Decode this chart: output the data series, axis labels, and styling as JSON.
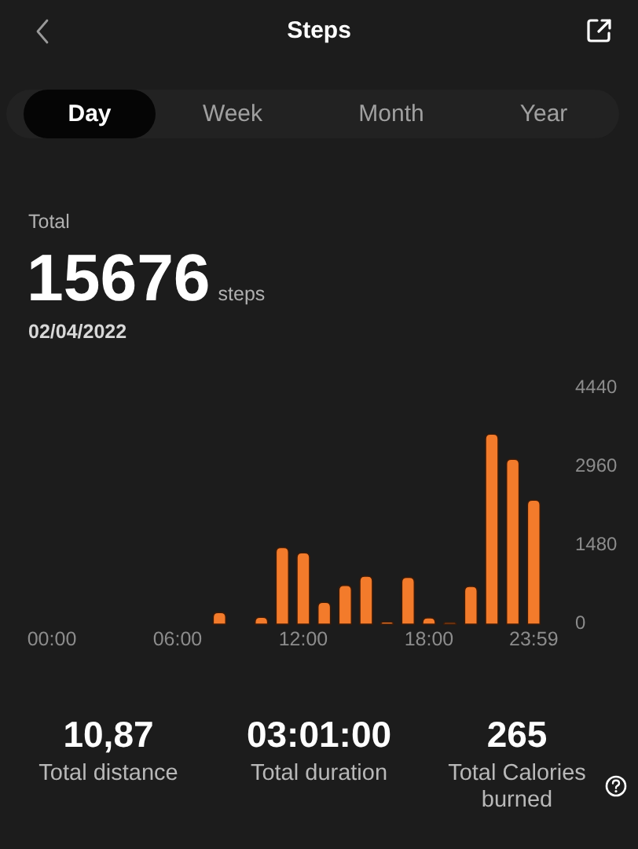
{
  "chart_data": {
    "type": "bar",
    "title": "Steps",
    "annotations": [
      "Day",
      "Week",
      "Month",
      "Year",
      "Total",
      "15676",
      "steps",
      "02/04/2022",
      "10,87",
      "Total distance",
      "03:01:00",
      "Total duration",
      "265",
      "Total Calories burned"
    ],
    "categories": [
      "00:00",
      null,
      null,
      null,
      null,
      null,
      "06:00",
      null,
      null,
      null,
      null,
      null,
      "12:00",
      null,
      null,
      null,
      null,
      null,
      "18:00",
      null,
      null,
      null,
      null,
      "23:59"
    ],
    "values": [
      null,
      null,
      null,
      null,
      null,
      null,
      null,
      null,
      220,
      null,
      130,
      1440,
      1340,
      410,
      730,
      900,
      40,
      880,
      120,
      30,
      710,
      3570,
      3100,
      2330
    ],
    "color": "#f37b2b",
    "ylim": [
      0,
      4440
    ],
    "yticks": [
      0,
      1480,
      2960,
      4440
    ]
  }
}
